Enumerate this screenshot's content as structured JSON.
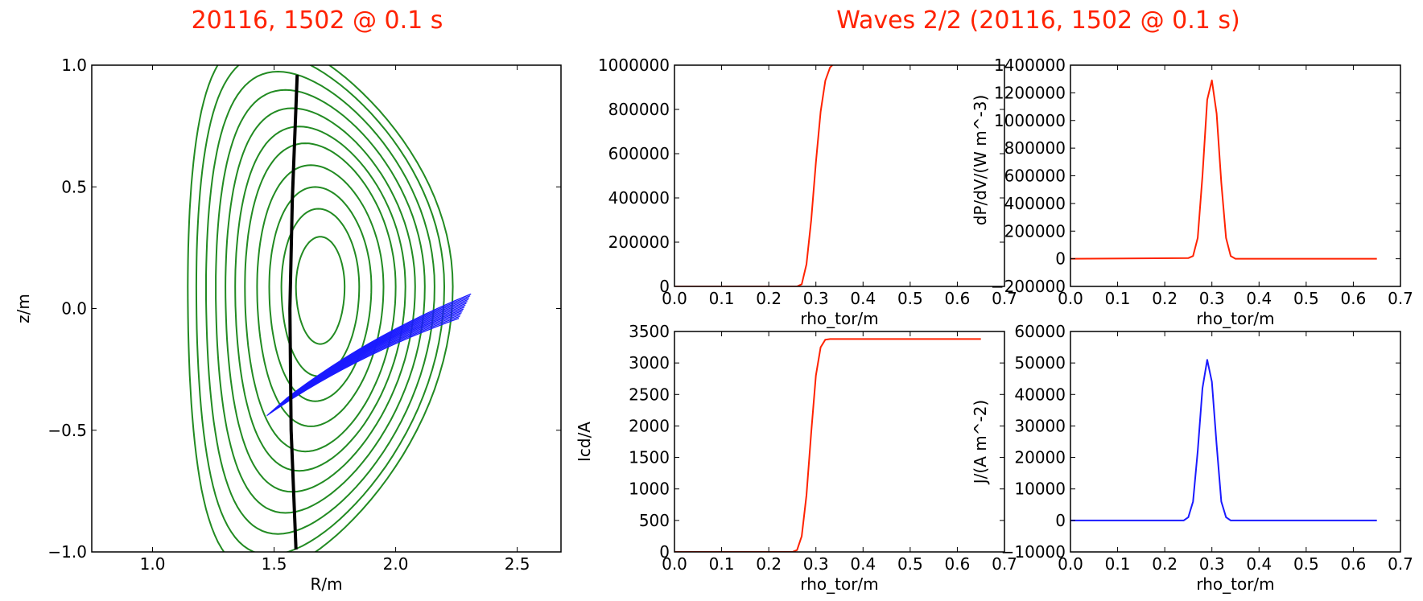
{
  "titles": {
    "left": "20116, 1502 @ 0.1 s",
    "right": "Waves 2/2 (20116, 1502 @ 0.1 s)"
  },
  "colors": {
    "title": "#ff2200",
    "flux": "#228b22",
    "wall": "#000000",
    "rays": "#1a1aff",
    "profile_red": "#ff2200",
    "profile_blue": "#1a1aff"
  },
  "chart_data": [
    {
      "type": "line",
      "panel": "equilibrium",
      "xlabel": "R/m",
      "ylabel": "z/m",
      "xlim": [
        0.75,
        2.68
      ],
      "ylim": [
        -1.0,
        1.0
      ],
      "xticks": [
        "1.0",
        "1.5",
        "2.0",
        "2.5"
      ],
      "yticks": [
        "1.0",
        "0.5",
        "0.0",
        "−0.5",
        "−1.0"
      ],
      "xtick_values": [
        1.0,
        1.5,
        2.0,
        2.5
      ],
      "ytick_values": [
        1.0,
        0.5,
        0.0,
        -0.5,
        -1.0
      ],
      "grid": false,
      "axis_center": [
        1.69,
        0.09
      ],
      "flux_surfaces": [
        {
          "a": 0.1,
          "elongation": 2.05,
          "triangularity": 0.0
        },
        {
          "a": 0.16,
          "elongation": 2.0,
          "triangularity": 0.05
        },
        {
          "a": 0.21,
          "elongation": 1.95,
          "triangularity": 0.1
        },
        {
          "a": 0.26,
          "elongation": 1.92,
          "triangularity": 0.15
        },
        {
          "a": 0.31,
          "elongation": 1.9,
          "triangularity": 0.2
        },
        {
          "a": 0.35,
          "elongation": 1.88,
          "triangularity": 0.25
        },
        {
          "a": 0.39,
          "elongation": 1.88,
          "triangularity": 0.3
        },
        {
          "a": 0.43,
          "elongation": 1.88,
          "triangularity": 0.34
        },
        {
          "a": 0.47,
          "elongation": 1.88,
          "triangularity": 0.38
        },
        {
          "a": 0.51,
          "elongation": 1.88,
          "triangularity": 0.42
        },
        {
          "a": 0.545,
          "elongation": 1.88,
          "triangularity": 0.46
        }
      ],
      "wall_line": {
        "R": [
          1.595,
          1.575,
          1.565,
          1.57,
          1.59
        ],
        "z": [
          0.96,
          0.45,
          0.0,
          -0.5,
          -0.99
        ]
      },
      "rays": {
        "count": 14,
        "start_R": [
          1.47,
          1.55
        ],
        "start_z": [
          -0.44,
          -0.37
        ],
        "end_R": [
          2.26,
          2.31
        ],
        "end_z": [
          -0.04,
          0.06
        ]
      }
    },
    {
      "type": "line",
      "panel": "top-left",
      "xlabel": "rho_tor/m",
      "ylabel": "",
      "xlim": [
        0.0,
        0.7
      ],
      "ylim": [
        0,
        1000000
      ],
      "xticks": [
        "0.0",
        "0.1",
        "0.2",
        "0.3",
        "0.4",
        "0.5",
        "0.6",
        "0.7"
      ],
      "yticks": [
        "1000000",
        "800000",
        "600000",
        "400000",
        "200000",
        "0"
      ],
      "xtick_values": [
        0.0,
        0.1,
        0.2,
        0.3,
        0.4,
        0.5,
        0.6,
        0.7
      ],
      "ytick_values": [
        1000000,
        800000,
        600000,
        400000,
        200000,
        0
      ],
      "series": [
        {
          "x": [
            0.0,
            0.26,
            0.27,
            0.28,
            0.29,
            0.3,
            0.31,
            0.32,
            0.33,
            0.335
          ],
          "y": [
            0,
            0,
            10000,
            100000,
            300000,
            560000,
            790000,
            930000,
            990000,
            1000000
          ]
        }
      ]
    },
    {
      "type": "line",
      "panel": "top-right",
      "xlabel": "rho_tor/m",
      "ylabel": "dP/dV/(W m^-3)",
      "xlim": [
        0.0,
        0.7
      ],
      "ylim": [
        -200000,
        1400000
      ],
      "xticks": [
        "0.0",
        "0.1",
        "0.2",
        "0.3",
        "0.4",
        "0.5",
        "0.6",
        "0.7"
      ],
      "yticks": [
        "1400000",
        "1200000",
        "1000000",
        "800000",
        "600000",
        "400000",
        "200000",
        "0",
        "−200000"
      ],
      "xtick_values": [
        0.0,
        0.1,
        0.2,
        0.3,
        0.4,
        0.5,
        0.6,
        0.7
      ],
      "ytick_values": [
        1400000,
        1200000,
        1000000,
        800000,
        600000,
        400000,
        200000,
        0,
        -200000
      ],
      "series": [
        {
          "x": [
            0.0,
            0.25,
            0.26,
            0.27,
            0.28,
            0.29,
            0.3,
            0.31,
            0.32,
            0.33,
            0.34,
            0.35,
            0.65
          ],
          "y": [
            0,
            5000,
            20000,
            150000,
            600000,
            1150000,
            1290000,
            1050000,
            550000,
            150000,
            20000,
            0,
            0
          ]
        }
      ]
    },
    {
      "type": "line",
      "panel": "bottom-left",
      "xlabel": "rho_tor/m",
      "ylabel": "Icd/A",
      "xlim": [
        0.0,
        0.7
      ],
      "ylim": [
        0,
        3500
      ],
      "xticks": [
        "0.0",
        "0.1",
        "0.2",
        "0.3",
        "0.4",
        "0.5",
        "0.6",
        "0.7"
      ],
      "yticks": [
        "3500",
        "3000",
        "2500",
        "2000",
        "1500",
        "1000",
        "500",
        "0"
      ],
      "xtick_values": [
        0.0,
        0.1,
        0.2,
        0.3,
        0.4,
        0.5,
        0.6,
        0.7
      ],
      "ytick_values": [
        3500,
        3000,
        2500,
        2000,
        1500,
        1000,
        500,
        0
      ],
      "series": [
        {
          "x": [
            0.0,
            0.25,
            0.26,
            0.27,
            0.28,
            0.29,
            0.3,
            0.31,
            0.32,
            0.33,
            0.65
          ],
          "y": [
            0,
            0,
            30,
            250,
            900,
            1900,
            2800,
            3250,
            3370,
            3380,
            3380
          ]
        }
      ]
    },
    {
      "type": "line",
      "panel": "bottom-right",
      "xlabel": "rho_tor/m",
      "ylabel": "J/(A m^-2)",
      "xlim": [
        0.0,
        0.7
      ],
      "ylim": [
        -10000,
        60000
      ],
      "xticks": [
        "0.0",
        "0.1",
        "0.2",
        "0.3",
        "0.4",
        "0.5",
        "0.6",
        "0.7"
      ],
      "yticks": [
        "60000",
        "50000",
        "40000",
        "30000",
        "20000",
        "10000",
        "0",
        "−10000"
      ],
      "xtick_values": [
        0.0,
        0.1,
        0.2,
        0.3,
        0.4,
        0.5,
        0.6,
        0.7
      ],
      "ytick_values": [
        60000,
        50000,
        40000,
        30000,
        20000,
        10000,
        0,
        -10000
      ],
      "series": [
        {
          "x": [
            0.0,
            0.24,
            0.25,
            0.26,
            0.27,
            0.28,
            0.29,
            0.3,
            0.31,
            0.32,
            0.33,
            0.34,
            0.65
          ],
          "y": [
            0,
            0,
            1000,
            6000,
            22000,
            42000,
            51000,
            44000,
            24000,
            6000,
            1000,
            0,
            0
          ]
        }
      ]
    }
  ]
}
